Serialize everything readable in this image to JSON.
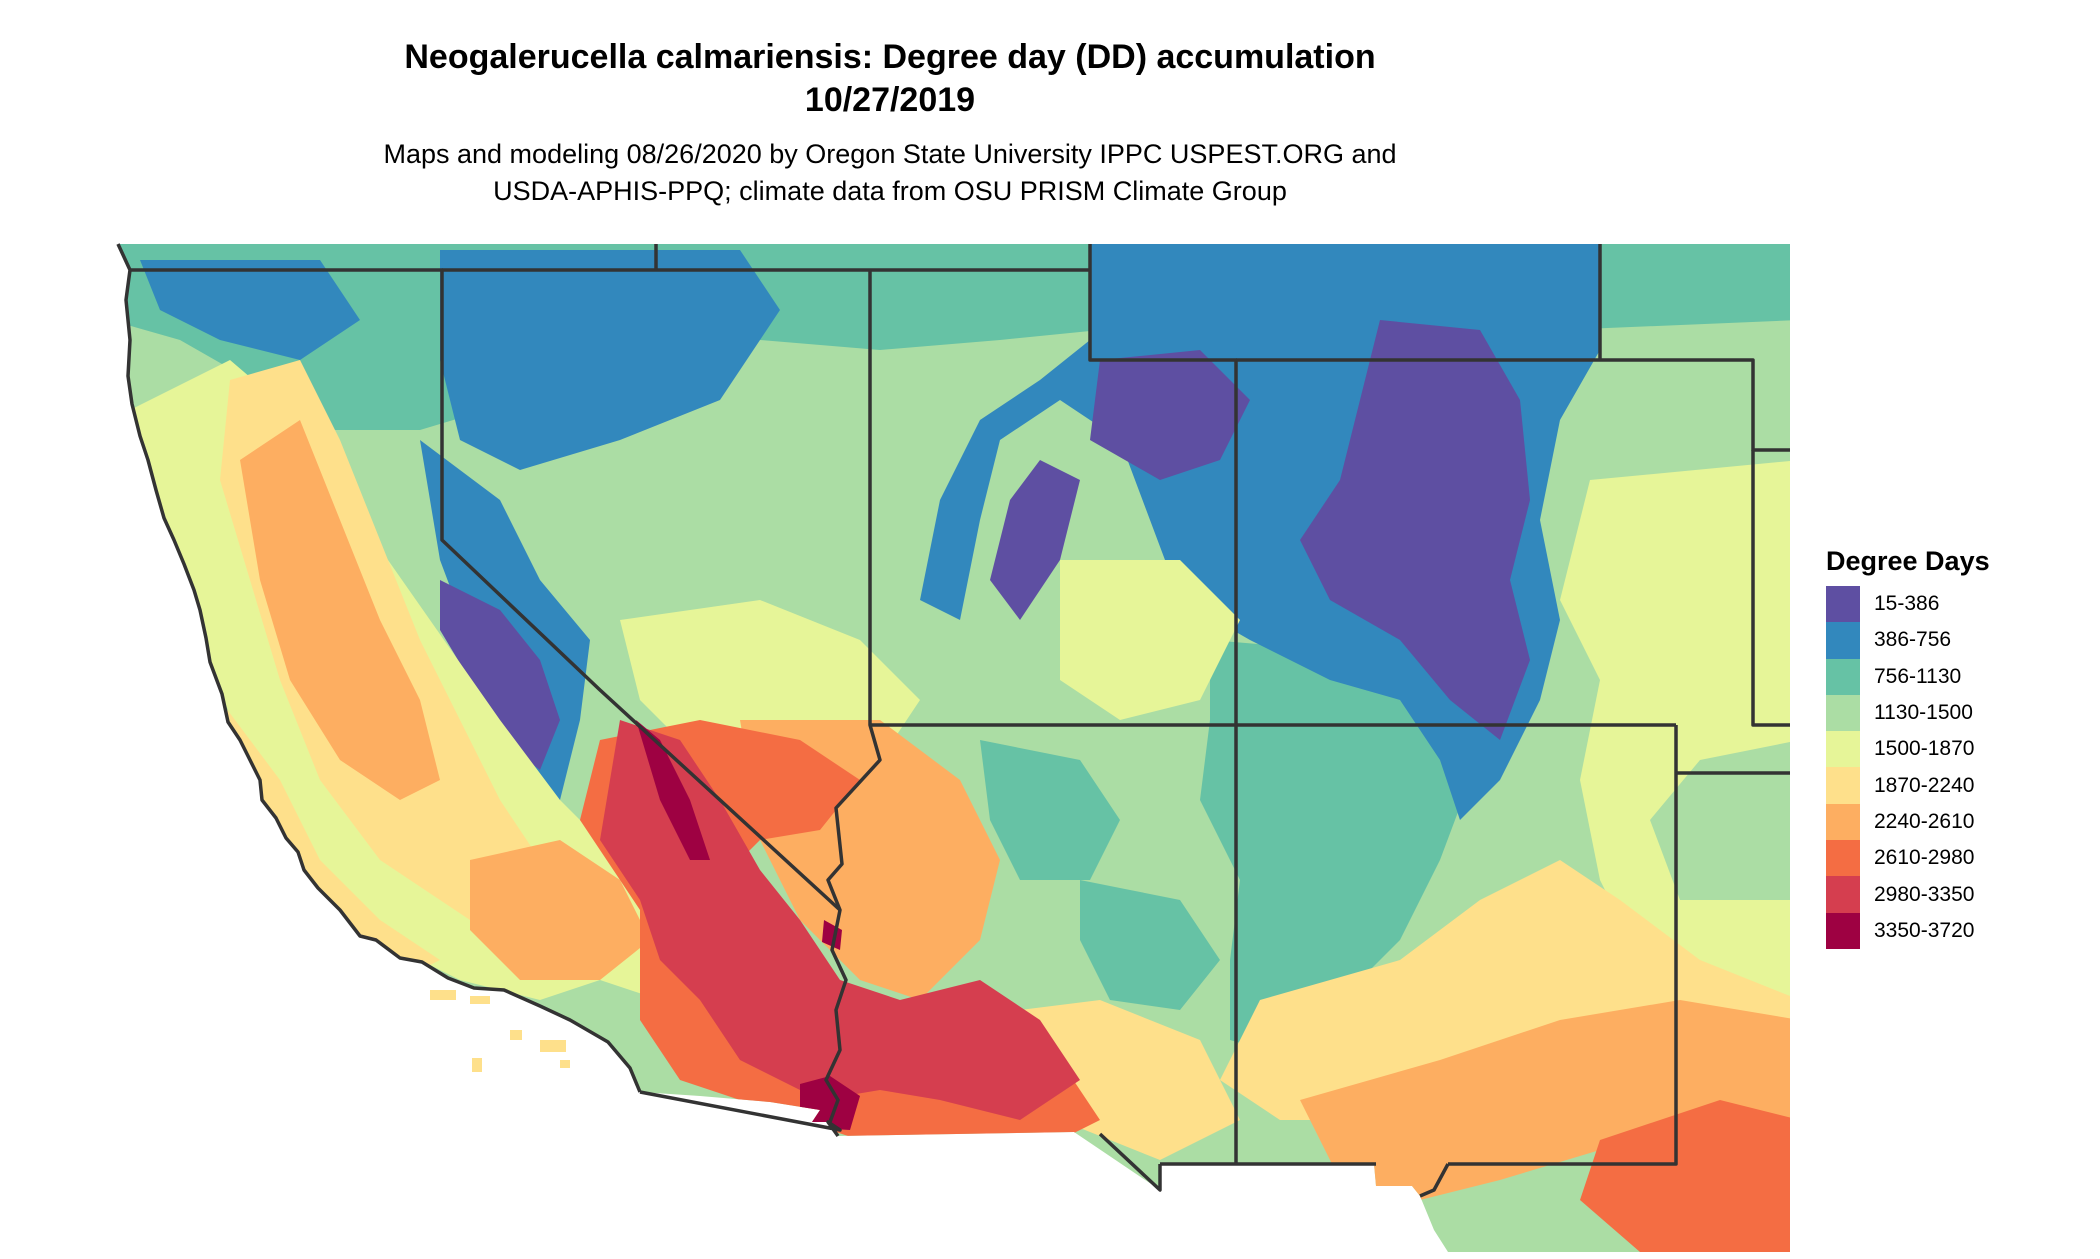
{
  "title": {
    "line1": "Neogalerucella calmariensis: Degree day (DD) accumulation",
    "line2": "10/27/2019"
  },
  "subtitle": {
    "line1": "Maps and modeling 08/26/2020 by Oregon State University IPPC USPEST.ORG and",
    "line2": "USDA-APHIS-PPQ; climate data from OSU PRISM Climate Group"
  },
  "legend": {
    "title": "Degree Days",
    "items": [
      {
        "label": "15-386",
        "color": "#5e4fa2"
      },
      {
        "label": "386-756",
        "color": "#3288bd"
      },
      {
        "label": "756-1130",
        "color": "#66c2a5"
      },
      {
        "label": "1130-1500",
        "color": "#abdda4"
      },
      {
        "label": "1500-1870",
        "color": "#e6f598"
      },
      {
        "label": "1870-2240",
        "color": "#fee08b"
      },
      {
        "label": "2240-2610",
        "color": "#fdae61"
      },
      {
        "label": "2610-2980",
        "color": "#f46d43"
      },
      {
        "label": "2980-3350",
        "color": "#d53e4f"
      },
      {
        "label": "3350-3720",
        "color": "#9e0142"
      }
    ]
  },
  "map": {
    "region": "Southwestern United States",
    "land_color": "#abdda4",
    "border_color": "#333333"
  }
}
